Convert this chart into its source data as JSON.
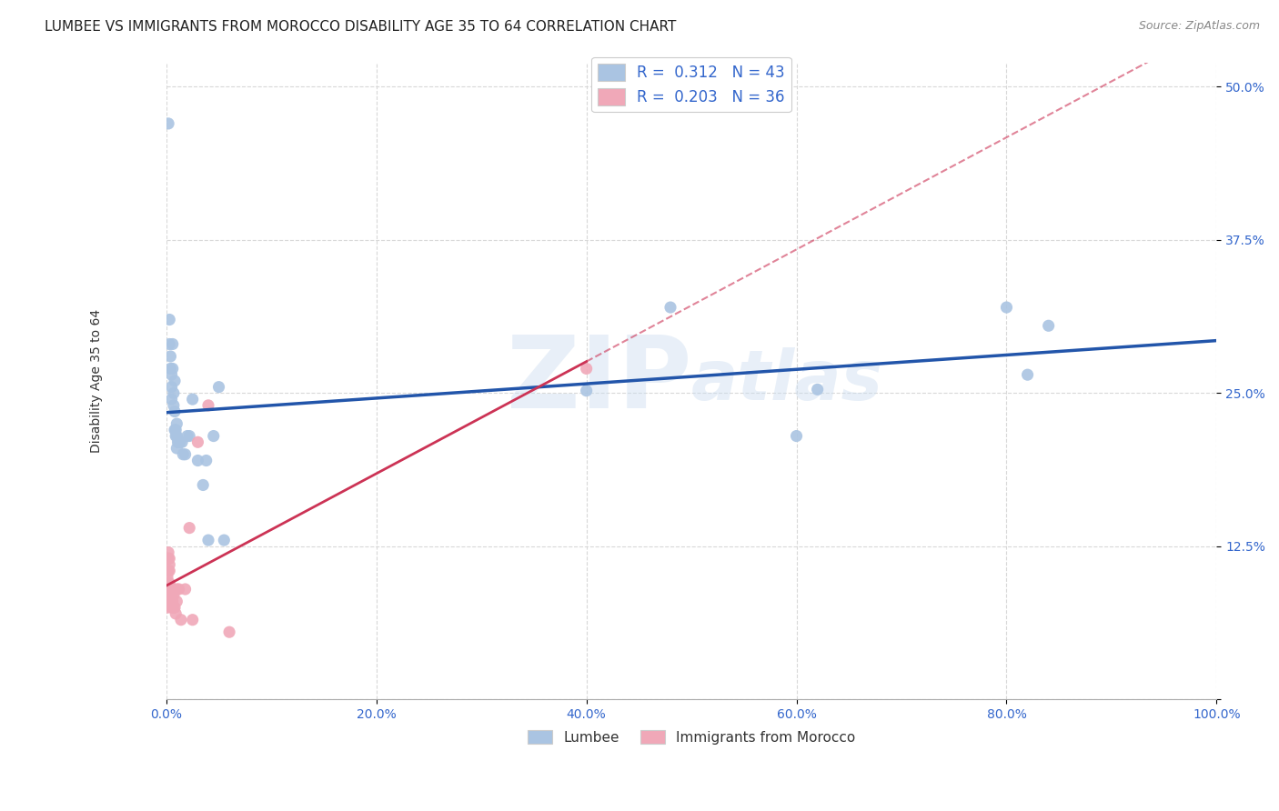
{
  "title": "LUMBEE VS IMMIGRANTS FROM MOROCCO DISABILITY AGE 35 TO 64 CORRELATION CHART",
  "source": "Source: ZipAtlas.com",
  "ylabel": "Disability Age 35 to 64",
  "watermark": "ZIPAtlas",
  "lumbee_R": 0.312,
  "lumbee_N": 43,
  "morocco_R": 0.203,
  "morocco_N": 36,
  "lumbee_color": "#aac4e2",
  "lumbee_line_color": "#2255aa",
  "morocco_color": "#f0a8b8",
  "morocco_line_color": "#cc3355",
  "lumbee_scatter_x": [
    0.002,
    0.003,
    0.003,
    0.004,
    0.004,
    0.005,
    0.005,
    0.005,
    0.006,
    0.006,
    0.007,
    0.007,
    0.008,
    0.008,
    0.008,
    0.009,
    0.009,
    0.01,
    0.01,
    0.01,
    0.011,
    0.012,
    0.013,
    0.015,
    0.016,
    0.018,
    0.02,
    0.022,
    0.025,
    0.03,
    0.035,
    0.038,
    0.04,
    0.045,
    0.05,
    0.055,
    0.4,
    0.48,
    0.6,
    0.62,
    0.8,
    0.82,
    0.84
  ],
  "lumbee_scatter_y": [
    0.47,
    0.31,
    0.29,
    0.28,
    0.27,
    0.265,
    0.255,
    0.245,
    0.29,
    0.27,
    0.25,
    0.24,
    0.26,
    0.235,
    0.22,
    0.22,
    0.215,
    0.225,
    0.215,
    0.205,
    0.21,
    0.21,
    0.21,
    0.21,
    0.2,
    0.2,
    0.215,
    0.215,
    0.245,
    0.195,
    0.175,
    0.195,
    0.13,
    0.215,
    0.255,
    0.13,
    0.252,
    0.32,
    0.215,
    0.253,
    0.32,
    0.265,
    0.305
  ],
  "morocco_scatter_x": [
    0.001,
    0.001,
    0.001,
    0.001,
    0.001,
    0.002,
    0.002,
    0.002,
    0.002,
    0.003,
    0.003,
    0.003,
    0.003,
    0.004,
    0.004,
    0.004,
    0.005,
    0.005,
    0.005,
    0.006,
    0.006,
    0.007,
    0.007,
    0.008,
    0.009,
    0.01,
    0.01,
    0.012,
    0.014,
    0.018,
    0.022,
    0.025,
    0.03,
    0.04,
    0.06,
    0.4
  ],
  "morocco_scatter_y": [
    0.1,
    0.095,
    0.09,
    0.085,
    0.075,
    0.12,
    0.115,
    0.105,
    0.095,
    0.115,
    0.11,
    0.105,
    0.095,
    0.09,
    0.085,
    0.08,
    0.09,
    0.085,
    0.075,
    0.09,
    0.08,
    0.085,
    0.075,
    0.075,
    0.07,
    0.09,
    0.08,
    0.09,
    0.065,
    0.09,
    0.14,
    0.065,
    0.21,
    0.24,
    0.055,
    0.27
  ],
  "xlim": [
    0.0,
    1.0
  ],
  "ylim": [
    0.0,
    0.52
  ],
  "xticks": [
    0.0,
    0.2,
    0.4,
    0.6,
    0.8,
    1.0
  ],
  "xtick_labels": [
    "0.0%",
    "20.0%",
    "40.0%",
    "60.0%",
    "80.0%",
    "100.0%"
  ],
  "yticks": [
    0.0,
    0.125,
    0.25,
    0.375,
    0.5
  ],
  "ytick_labels": [
    "",
    "12.5%",
    "25.0%",
    "37.5%",
    "50.0%"
  ],
  "grid_color": "#d8d8d8",
  "background_color": "#ffffff",
  "title_fontsize": 11,
  "label_fontsize": 10,
  "tick_fontsize": 10,
  "marker_size": 90
}
